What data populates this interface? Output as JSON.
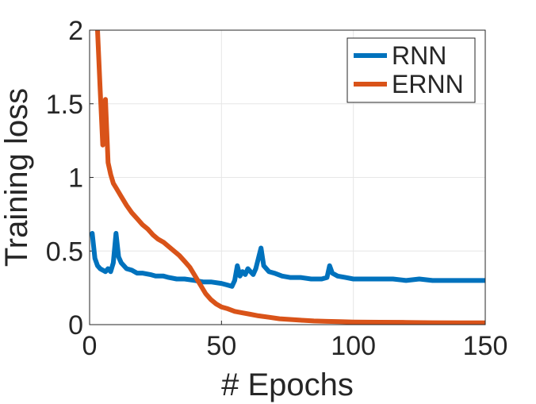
{
  "chart_data": {
    "type": "line",
    "xlabel": "# Epochs",
    "ylabel": "Training loss",
    "xlim": [
      0,
      150
    ],
    "ylim": [
      0,
      2
    ],
    "xticks": [
      0,
      50,
      100,
      150
    ],
    "yticks": [
      0,
      0.5,
      1,
      1.5,
      2
    ],
    "xtick_labels": [
      "0",
      "50",
      "100",
      "150"
    ],
    "ytick_labels": [
      "0",
      "0.5",
      "1",
      "1.5",
      "2"
    ],
    "grid": true,
    "legend_position": "top-right",
    "series": [
      {
        "name": "RNN",
        "color": "#0072BD",
        "points": [
          [
            1,
            0.62
          ],
          [
            2,
            0.45
          ],
          [
            3,
            0.4
          ],
          [
            4,
            0.38
          ],
          [
            5,
            0.37
          ],
          [
            6,
            0.36
          ],
          [
            7,
            0.38
          ],
          [
            8,
            0.36
          ],
          [
            9,
            0.42
          ],
          [
            10,
            0.62
          ],
          [
            11,
            0.46
          ],
          [
            12,
            0.42
          ],
          [
            13,
            0.4
          ],
          [
            14,
            0.38
          ],
          [
            16,
            0.37
          ],
          [
            18,
            0.35
          ],
          [
            20,
            0.35
          ],
          [
            23,
            0.34
          ],
          [
            25,
            0.33
          ],
          [
            28,
            0.33
          ],
          [
            30,
            0.32
          ],
          [
            33,
            0.31
          ],
          [
            36,
            0.31
          ],
          [
            40,
            0.3
          ],
          [
            43,
            0.29
          ],
          [
            46,
            0.29
          ],
          [
            50,
            0.28
          ],
          [
            52,
            0.27
          ],
          [
            54,
            0.26
          ],
          [
            55,
            0.3
          ],
          [
            56,
            0.4
          ],
          [
            57,
            0.33
          ],
          [
            58,
            0.36
          ],
          [
            59,
            0.34
          ],
          [
            60,
            0.38
          ],
          [
            61,
            0.36
          ],
          [
            62,
            0.34
          ],
          [
            63,
            0.38
          ],
          [
            64,
            0.45
          ],
          [
            65,
            0.52
          ],
          [
            66,
            0.4
          ],
          [
            68,
            0.36
          ],
          [
            70,
            0.35
          ],
          [
            73,
            0.33
          ],
          [
            76,
            0.32
          ],
          [
            80,
            0.32
          ],
          [
            84,
            0.31
          ],
          [
            88,
            0.31
          ],
          [
            90,
            0.32
          ],
          [
            91,
            0.4
          ],
          [
            92,
            0.35
          ],
          [
            94,
            0.33
          ],
          [
            97,
            0.32
          ],
          [
            100,
            0.31
          ],
          [
            105,
            0.31
          ],
          [
            110,
            0.31
          ],
          [
            115,
            0.31
          ],
          [
            120,
            0.3
          ],
          [
            125,
            0.31
          ],
          [
            130,
            0.3
          ],
          [
            135,
            0.3
          ],
          [
            140,
            0.3
          ],
          [
            145,
            0.3
          ],
          [
            150,
            0.3
          ]
        ]
      },
      {
        "name": "ERNN",
        "color": "#D95319",
        "points": [
          [
            3,
            2.0
          ],
          [
            4,
            1.6
          ],
          [
            5,
            1.22
          ],
          [
            6,
            1.53
          ],
          [
            7,
            1.1
          ],
          [
            8,
            1.02
          ],
          [
            9,
            0.96
          ],
          [
            10,
            0.93
          ],
          [
            12,
            0.87
          ],
          [
            14,
            0.81
          ],
          [
            16,
            0.76
          ],
          [
            18,
            0.72
          ],
          [
            20,
            0.68
          ],
          [
            22,
            0.65
          ],
          [
            24,
            0.61
          ],
          [
            26,
            0.58
          ],
          [
            28,
            0.56
          ],
          [
            30,
            0.53
          ],
          [
            32,
            0.5
          ],
          [
            34,
            0.47
          ],
          [
            36,
            0.43
          ],
          [
            38,
            0.39
          ],
          [
            40,
            0.33
          ],
          [
            42,
            0.27
          ],
          [
            44,
            0.21
          ],
          [
            46,
            0.17
          ],
          [
            48,
            0.14
          ],
          [
            50,
            0.12
          ],
          [
            52,
            0.11
          ],
          [
            55,
            0.09
          ],
          [
            58,
            0.08
          ],
          [
            61,
            0.07
          ],
          [
            64,
            0.06
          ],
          [
            68,
            0.05
          ],
          [
            72,
            0.04
          ],
          [
            76,
            0.035
          ],
          [
            80,
            0.03
          ],
          [
            85,
            0.025
          ],
          [
            90,
            0.022
          ],
          [
            95,
            0.02
          ],
          [
            100,
            0.018
          ],
          [
            110,
            0.016
          ],
          [
            120,
            0.015
          ],
          [
            130,
            0.013
          ],
          [
            140,
            0.012
          ],
          [
            150,
            0.012
          ]
        ]
      }
    ]
  }
}
